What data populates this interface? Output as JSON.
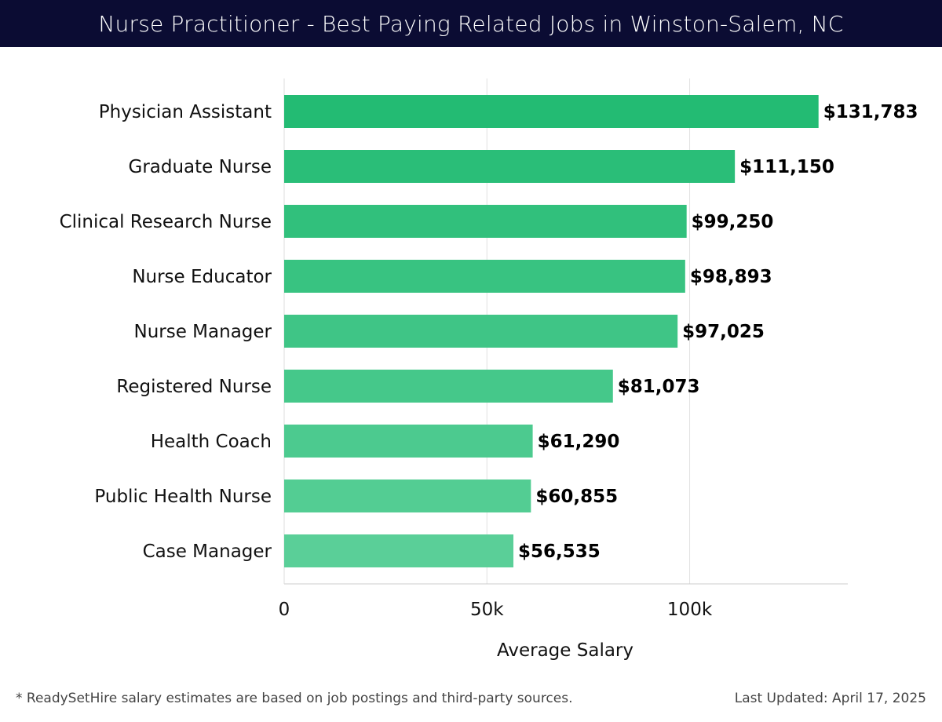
{
  "header": {
    "title": "Nurse Practitioner - Best Paying Related Jobs in Winston-Salem, NC"
  },
  "footer": {
    "note": "* ReadySetHire salary estimates are based on job postings and third-party sources.",
    "updated": "Last Updated: April 17, 2025"
  },
  "colors": {
    "header_bg": "#0b0c33",
    "bar_dark": "#23bb73",
    "bar_light": "#5acf98",
    "grid": "#e2e2e2"
  },
  "chart_data": {
    "type": "bar",
    "orientation": "horizontal",
    "categories": [
      "Physician Assistant",
      "Graduate Nurse",
      "Clinical Research Nurse",
      "Nurse Educator",
      "Nurse Manager",
      "Registered Nurse",
      "Health Coach",
      "Public Health Nurse",
      "Case Manager"
    ],
    "values": [
      131783,
      111150,
      99250,
      98893,
      97025,
      81073,
      61290,
      60855,
      56535
    ],
    "value_labels": [
      "$131,783",
      "$111,150",
      "$99,250",
      "$98,893",
      "$97,025",
      "$81,073",
      "$61,290",
      "$60,855",
      "$56,535"
    ],
    "xlabel": "Average Salary",
    "ylabel": "",
    "xlim": [
      0,
      139000
    ],
    "xticks": [
      0,
      50000,
      100000
    ],
    "xtick_labels": [
      "0",
      "50k",
      "100k"
    ],
    "grid": true
  }
}
